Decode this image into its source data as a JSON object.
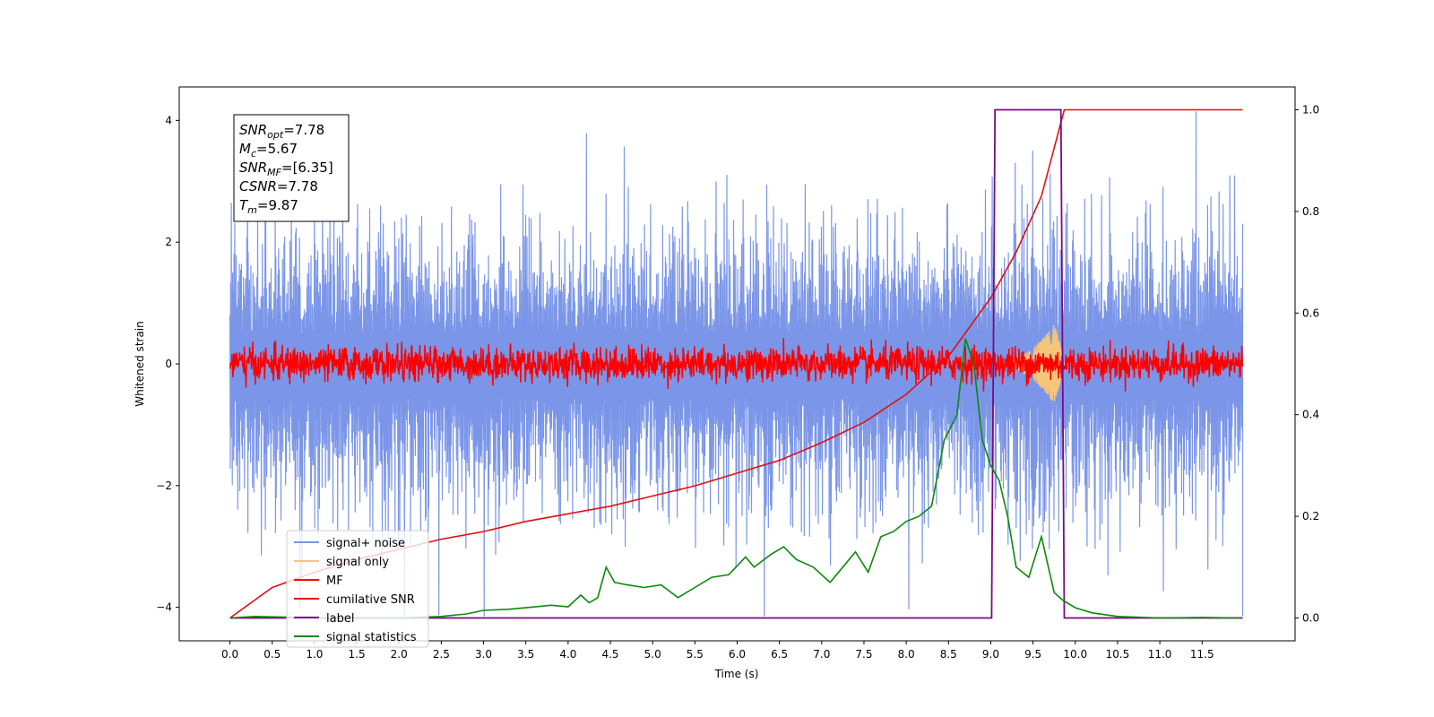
{
  "chart_data": {
    "type": "line",
    "xlabel": "Time (s)",
    "ylabel": "Whitened strain",
    "xlim": [
      -0.6,
      12.6
    ],
    "ylim": [
      -4.55,
      4.55
    ],
    "y2lim": [
      -0.045,
      1.045
    ],
    "x_ticks": [
      "0.0",
      "0.5",
      "1.0",
      "1.5",
      "2.0",
      "2.5",
      "3.0",
      "3.5",
      "4.0",
      "4.5",
      "5.0",
      "5.5",
      "6.0",
      "6.5",
      "7.0",
      "7.5",
      "8.0",
      "8.5",
      "9.0",
      "9.5",
      "10.0",
      "10.5",
      "11.0",
      "11.5"
    ],
    "y_ticks": [
      "−4",
      "−2",
      "0",
      "2",
      "4"
    ],
    "y2_ticks": [
      "0.0",
      "0.2",
      "0.4",
      "0.6",
      "0.8",
      "1.0"
    ],
    "grid": false,
    "legend_position": "lower-left",
    "info_box": {
      "lines": [
        {
          "base": "SNR",
          "sub": "opt",
          "value": "=7.78"
        },
        {
          "base": "M",
          "sub": "c",
          "value": "=5.67"
        },
        {
          "base": "SNR",
          "sub": "MF",
          "value": "=[6.35]"
        },
        {
          "base": "CSNR",
          "sub": "",
          "value": "=7.78"
        },
        {
          "base": "T",
          "sub": "m",
          "value": "=9.87"
        }
      ]
    },
    "series": [
      {
        "name": "signal+ noise",
        "color": "#7b96e8",
        "axis": "left",
        "envelope": {
          "upper_typical": 1.7,
          "lower_typical": -1.9,
          "upper_max": 4.15,
          "lower_min": -4.15
        }
      },
      {
        "name": "signal only",
        "color": "#f5c67a",
        "axis": "left",
        "chirp": {
          "start": 9.0,
          "peak_time": 9.75,
          "peak_amplitude": 0.65,
          "end": 9.87
        }
      },
      {
        "name": "MF",
        "color": "#ff0000",
        "axis": "left",
        "envelope": {
          "upper_typical": 0.35,
          "lower_typical": -0.3,
          "upper_max": 0.55,
          "lower_min": -0.45
        }
      },
      {
        "name": "cumilative SNR",
        "color": "#e01010",
        "axis": "right",
        "x": [
          0.0,
          0.5,
          1.0,
          1.5,
          2.0,
          2.5,
          3.0,
          3.5,
          4.0,
          4.5,
          5.0,
          5.5,
          6.0,
          6.5,
          7.0,
          7.5,
          8.0,
          8.5,
          9.0,
          9.3,
          9.6,
          9.87,
          10.0,
          11.0,
          11.98
        ],
        "values": [
          0.0,
          0.06,
          0.09,
          0.115,
          0.135,
          0.155,
          0.17,
          0.19,
          0.205,
          0.22,
          0.24,
          0.26,
          0.285,
          0.31,
          0.345,
          0.385,
          0.44,
          0.515,
          0.63,
          0.72,
          0.83,
          1.0,
          1.0,
          1.0,
          1.0
        ]
      },
      {
        "name": "label",
        "color": "#7b0a82",
        "axis": "right",
        "x": [
          0.0,
          9.01,
          9.05,
          9.83,
          9.87,
          11.98
        ],
        "values": [
          0.0,
          0.0,
          1.0,
          1.0,
          0.0,
          0.0
        ]
      },
      {
        "name": "signal statistics",
        "color": "#0a8a0a",
        "axis": "right",
        "x": [
          0.0,
          0.3,
          0.6,
          1.0,
          1.5,
          2.0,
          2.5,
          2.8,
          3.0,
          3.3,
          3.5,
          3.8,
          4.0,
          4.15,
          4.25,
          4.35,
          4.45,
          4.55,
          4.7,
          4.9,
          5.1,
          5.3,
          5.5,
          5.7,
          5.9,
          6.1,
          6.2,
          6.4,
          6.55,
          6.7,
          6.9,
          7.1,
          7.25,
          7.4,
          7.55,
          7.7,
          7.85,
          8.0,
          8.15,
          8.3,
          8.45,
          8.6,
          8.7,
          8.8,
          8.9,
          9.0,
          9.1,
          9.2,
          9.3,
          9.45,
          9.6,
          9.75,
          9.85,
          10.0,
          10.2,
          10.5,
          11.0,
          11.5,
          11.95
        ],
        "values": [
          0.0,
          0.003,
          0.002,
          0.0,
          0.0,
          0.0,
          0.003,
          0.008,
          0.015,
          0.017,
          0.02,
          0.025,
          0.022,
          0.045,
          0.03,
          0.04,
          0.1,
          0.07,
          0.065,
          0.06,
          0.065,
          0.04,
          0.06,
          0.08,
          0.085,
          0.12,
          0.1,
          0.125,
          0.14,
          0.115,
          0.1,
          0.07,
          0.1,
          0.13,
          0.09,
          0.16,
          0.17,
          0.19,
          0.2,
          0.22,
          0.35,
          0.4,
          0.55,
          0.5,
          0.35,
          0.3,
          0.27,
          0.2,
          0.1,
          0.08,
          0.16,
          0.05,
          0.035,
          0.02,
          0.01,
          0.003,
          0.0,
          0.001,
          0.0
        ]
      }
    ]
  }
}
